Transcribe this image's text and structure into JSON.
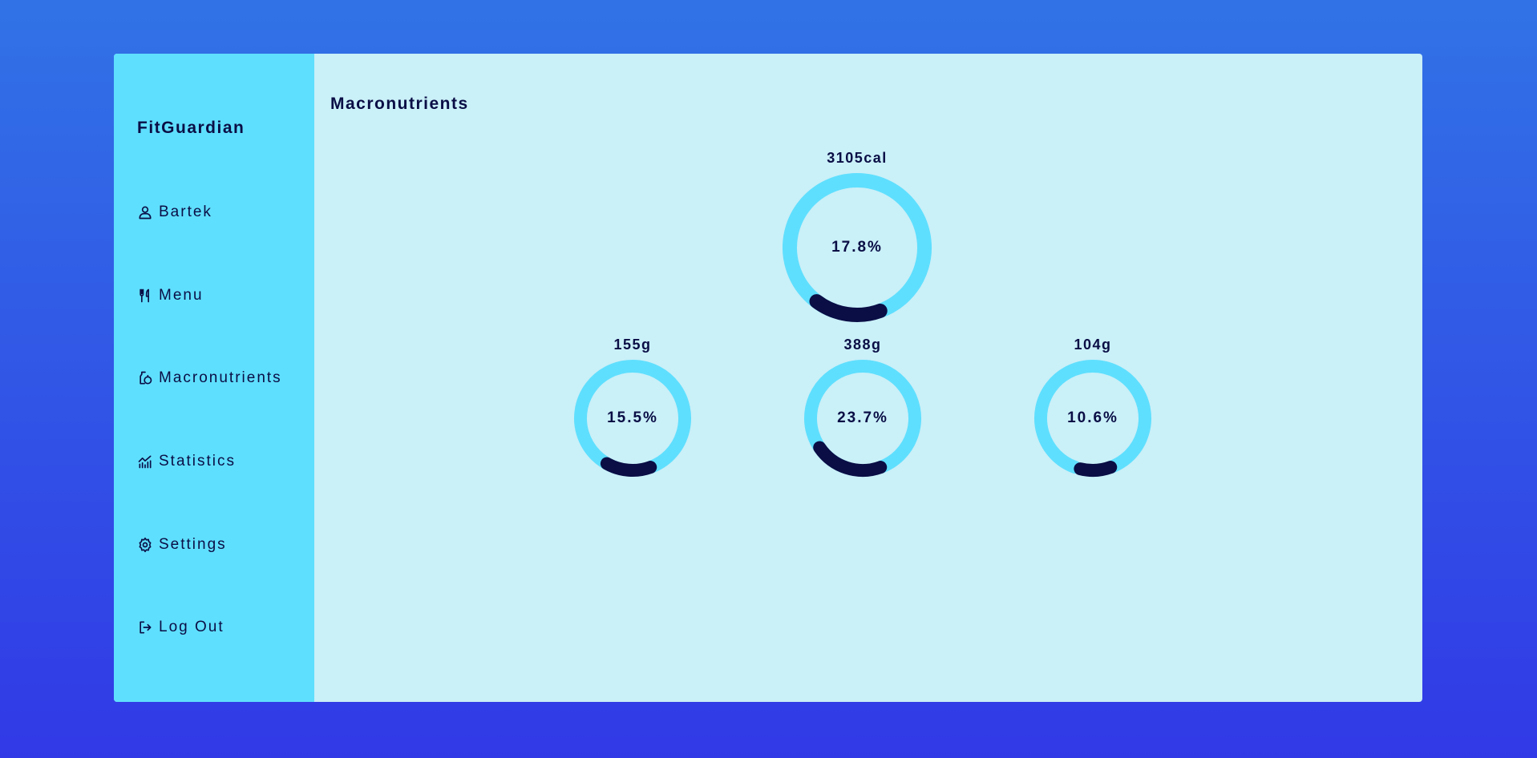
{
  "app": {
    "brand": "FitGuardian"
  },
  "sidebar": {
    "items": [
      {
        "label": "Bartek",
        "icon": "user-icon"
      },
      {
        "label": "Menu",
        "icon": "utensils-icon"
      },
      {
        "label": "Macronutrients",
        "icon": "nutrition-icon"
      },
      {
        "label": "Statistics",
        "icon": "chart-icon"
      },
      {
        "label": "Settings",
        "icon": "gear-icon"
      },
      {
        "label": "Log Out",
        "icon": "logout-icon"
      }
    ]
  },
  "main": {
    "title": "Macronutrients"
  },
  "gauges": {
    "calories": {
      "value_label": "3105cal",
      "percent_label": "17.8%",
      "percent": 17.8
    },
    "first": {
      "value_label": "155g",
      "percent_label": "15.5%",
      "percent": 15.5
    },
    "second": {
      "value_label": "388g",
      "percent_label": "23.7%",
      "percent": 23.7
    },
    "third": {
      "value_label": "104g",
      "percent_label": "10.6%",
      "percent": 10.6
    }
  },
  "colors": {
    "background_top": "#3173e6",
    "background_bottom": "#3139e6",
    "sidebar": "#5fdffe",
    "panel": "#caf0f8",
    "ring_track": "#5fdffe",
    "ring_fill": "#0a0e45",
    "text": "#0a0e45"
  }
}
